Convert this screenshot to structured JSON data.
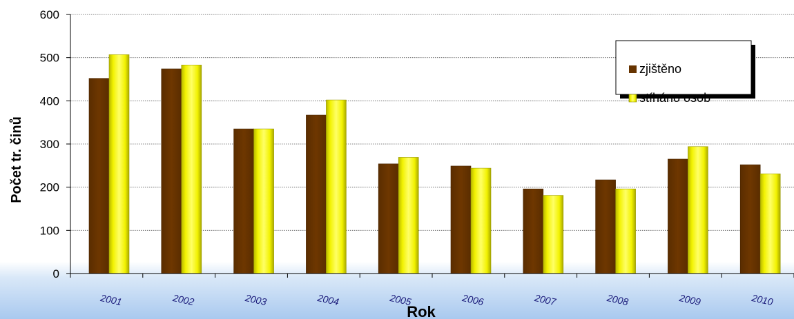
{
  "chart_data": {
    "type": "bar",
    "title": "",
    "xlabel": "Rok",
    "ylabel": "Počet  tr. činů",
    "ylim": [
      0,
      600
    ],
    "yticks": [
      0,
      100,
      200,
      300,
      400,
      500,
      600
    ],
    "grid": true,
    "legend_position": "top-right",
    "categories": [
      "2001",
      "2002",
      "2003",
      "2004",
      "2005",
      "2006",
      "2007",
      "2008",
      "2009",
      "2010"
    ],
    "series": [
      {
        "name": "zjištěno",
        "color": "#663300",
        "values": [
          452,
          474,
          335,
          367,
          254,
          249,
          196,
          217,
          265,
          252
        ]
      },
      {
        "name": "stíháno osob",
        "color": "#ffff33",
        "values": [
          507,
          483,
          335,
          402,
          269,
          244,
          181,
          196,
          294,
          231
        ]
      }
    ]
  }
}
